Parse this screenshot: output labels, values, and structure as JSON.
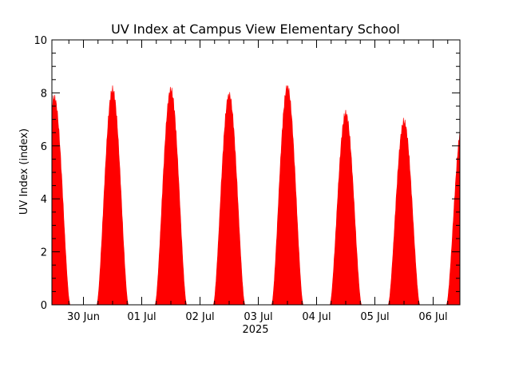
{
  "chart_data": {
    "type": "area",
    "title": "UV Index at Campus View Elementary School",
    "ylabel": "UV Index (index)",
    "xlabel": "2025",
    "ylim": [
      0,
      10
    ],
    "yticks": [
      0,
      2,
      4,
      6,
      8,
      10
    ],
    "xticks": [
      "30 Jun",
      "01 Jul",
      "02 Jul",
      "03 Jul",
      "04 Jul",
      "05 Jul",
      "06 Jul"
    ],
    "xlim_days": [
      "2025-06-29 15:00",
      "2025-07-06 12:00"
    ],
    "grid": false,
    "series": [
      {
        "color": "#ff0000",
        "days": [
          {
            "date": "2025-06-29",
            "peak": 7.8
          },
          {
            "date": "2025-06-30",
            "peak": 8.1
          },
          {
            "date": "2025-07-01",
            "peak": 8.1
          },
          {
            "date": "2025-07-02",
            "peak": 7.9
          },
          {
            "date": "2025-07-03",
            "peak": 8.2
          },
          {
            "date": "2025-07-04",
            "peak": 7.2
          },
          {
            "date": "2025-07-05",
            "peak": 6.9
          },
          {
            "date": "2025-07-06",
            "peak": 6.8
          }
        ]
      }
    ]
  }
}
